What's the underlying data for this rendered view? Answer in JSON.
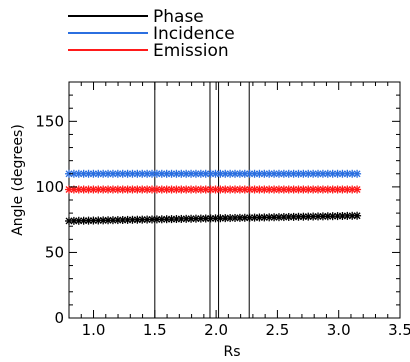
{
  "chart_data": {
    "type": "scatter",
    "title": "",
    "xlabel": "Rs",
    "ylabel": "Angle (degrees)",
    "xlim": [
      0.8,
      3.5
    ],
    "ylim": [
      0,
      180
    ],
    "xticks": [
      1.0,
      1.5,
      2.0,
      2.5,
      3.0,
      3.5
    ],
    "xtick_labels": [
      "1.0",
      "1.5",
      "2.0",
      "2.5",
      "3.0",
      "3.5"
    ],
    "yticks": [
      0,
      50,
      100,
      150
    ],
    "ytick_labels": [
      "0",
      "50",
      "100",
      "150"
    ],
    "grid": false,
    "legend_position": "top-center, above plot",
    "marker": "asterisk",
    "vertical_lines": [
      1.5,
      1.95,
      2.02,
      2.27
    ],
    "series": [
      {
        "name": "Phase",
        "color": "#000000",
        "x_range": [
          0.8,
          3.15
        ],
        "y_start": 74,
        "y_end": 78,
        "n_points": 60
      },
      {
        "name": "Incidence",
        "color": "#2b6fe0",
        "x_range": [
          0.8,
          3.15
        ],
        "y_start": 110,
        "y_end": 110,
        "n_points": 60
      },
      {
        "name": "Emission",
        "color": "#ff1a1a",
        "x_range": [
          0.8,
          3.15
        ],
        "y_start": 98,
        "y_end": 98,
        "n_points": 60
      }
    ]
  }
}
